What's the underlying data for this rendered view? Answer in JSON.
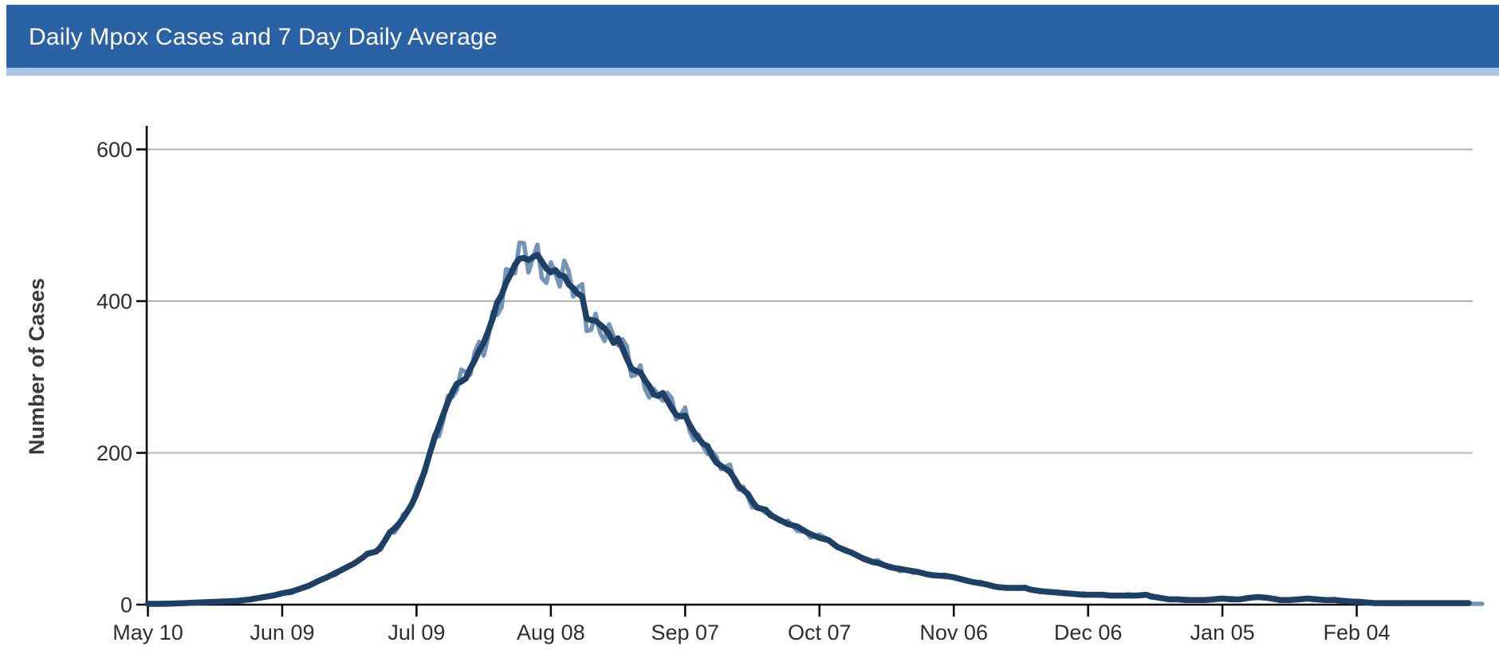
{
  "header": {
    "title": "Daily Mpox Cases and 7 Day Daily Average",
    "bg_color": "#2b62a6",
    "accent_strip_color": "#a6c6e6",
    "text_color": "#ffffff"
  },
  "chart_data": {
    "type": "line",
    "title": "Daily Mpox Cases and 7 Day Daily Average",
    "xlabel": "",
    "ylabel": "Number of Cases",
    "ylim": [
      0,
      630
    ],
    "yticks": [
      0,
      200,
      400,
      600
    ],
    "xtick_labels": [
      "May 10",
      "Jun 09",
      "Jul 09",
      "Aug 08",
      "Sep 07",
      "Oct 07",
      "Nov 06",
      "Dec 06",
      "Jan 05",
      "Feb 04"
    ],
    "xtick_days": [
      0,
      30,
      60,
      90,
      120,
      150,
      180,
      210,
      240,
      270
    ],
    "x_range_days": [
      0,
      295.5
    ],
    "grid": "horizontal",
    "legend": "none",
    "axis_color": "#000000",
    "grid_color": "#b5b5b5",
    "tick_label_color": "#2e2e2e",
    "series": [
      {
        "name": "Daily Cases",
        "color": "#7493b8",
        "style": "derived-jitter-of-average",
        "jitter_amp": 0.045,
        "extend_days": 3
      },
      {
        "name": "7 Day Daily Average",
        "color": "#1e3f66",
        "points": [
          [
            0,
            1
          ],
          [
            4,
            1
          ],
          [
            8,
            2
          ],
          [
            12,
            3
          ],
          [
            16,
            4
          ],
          [
            20,
            5
          ],
          [
            23,
            7
          ],
          [
            26,
            10
          ],
          [
            28,
            12
          ],
          [
            30,
            15
          ],
          [
            32,
            17
          ],
          [
            34,
            21
          ],
          [
            36,
            25
          ],
          [
            38,
            31
          ],
          [
            40,
            36
          ],
          [
            42,
            42
          ],
          [
            44,
            48
          ],
          [
            46,
            54
          ],
          [
            48,
            62
          ],
          [
            49,
            67
          ],
          [
            51,
            70
          ],
          [
            52,
            76
          ],
          [
            53,
            85
          ],
          [
            54,
            95
          ],
          [
            55,
            100
          ],
          [
            56,
            106
          ],
          [
            57,
            114
          ],
          [
            58,
            123
          ],
          [
            59,
            133
          ],
          [
            60,
            146
          ],
          [
            61,
            162
          ],
          [
            62,
            180
          ],
          [
            63,
            200
          ],
          [
            64,
            219
          ],
          [
            65,
            235
          ],
          [
            66,
            251
          ],
          [
            67,
            267
          ],
          [
            68,
            280
          ],
          [
            69,
            291
          ],
          [
            70,
            294
          ],
          [
            71,
            298
          ],
          [
            72,
            311
          ],
          [
            73,
            322
          ],
          [
            74,
            335
          ],
          [
            75,
            345
          ],
          [
            76,
            360
          ],
          [
            77,
            377
          ],
          [
            78,
            398
          ],
          [
            79,
            408
          ],
          [
            80,
            424
          ],
          [
            81,
            435
          ],
          [
            82,
            448
          ],
          [
            83,
            456
          ],
          [
            84,
            457
          ],
          [
            85,
            454
          ],
          [
            86,
            458
          ],
          [
            87,
            461
          ],
          [
            88,
            452
          ],
          [
            89,
            443
          ],
          [
            90,
            438
          ],
          [
            91,
            441
          ],
          [
            92,
            434
          ],
          [
            93,
            433
          ],
          [
            94,
            422
          ],
          [
            95,
            417
          ],
          [
            96,
            410
          ],
          [
            97,
            406
          ],
          [
            98,
            377
          ],
          [
            99,
            375
          ],
          [
            100,
            374
          ],
          [
            101,
            369
          ],
          [
            102,
            364
          ],
          [
            103,
            356
          ],
          [
            104,
            345
          ],
          [
            105,
            351
          ],
          [
            106,
            338
          ],
          [
            107,
            324
          ],
          [
            108,
            311
          ],
          [
            109,
            308
          ],
          [
            110,
            306
          ],
          [
            111,
            296
          ],
          [
            112,
            288
          ],
          [
            113,
            277
          ],
          [
            114,
            275
          ],
          [
            115,
            279
          ],
          [
            116,
            269
          ],
          [
            117,
            259
          ],
          [
            118,
            250
          ],
          [
            119,
            248
          ],
          [
            120,
            249
          ],
          [
            121,
            237
          ],
          [
            122,
            227
          ],
          [
            123,
            219
          ],
          [
            124,
            212
          ],
          [
            125,
            209
          ],
          [
            126,
            196
          ],
          [
            127,
            187
          ],
          [
            128,
            183
          ],
          [
            130,
            175
          ],
          [
            131,
            166
          ],
          [
            132,
            156
          ],
          [
            133,
            151
          ],
          [
            134,
            146
          ],
          [
            135,
            136
          ],
          [
            136,
            128
          ],
          [
            138,
            125
          ],
          [
            139,
            118
          ],
          [
            141,
            112
          ],
          [
            142,
            109
          ],
          [
            143,
            106
          ],
          [
            145,
            103
          ],
          [
            147,
            96
          ],
          [
            148,
            93
          ],
          [
            150,
            88
          ],
          [
            152,
            85
          ],
          [
            154,
            76
          ],
          [
            156,
            71
          ],
          [
            157,
            69
          ],
          [
            159,
            63
          ],
          [
            160,
            60
          ],
          [
            162,
            56
          ],
          [
            163,
            55
          ],
          [
            165,
            51
          ],
          [
            166,
            49
          ],
          [
            168,
            47
          ],
          [
            169,
            46
          ],
          [
            171,
            44
          ],
          [
            172,
            43
          ],
          [
            174,
            40
          ],
          [
            175,
            39
          ],
          [
            177,
            38
          ],
          [
            178,
            38
          ],
          [
            180,
            36
          ],
          [
            182,
            33
          ],
          [
            184,
            30
          ],
          [
            186,
            28
          ],
          [
            187,
            27
          ],
          [
            189,
            24
          ],
          [
            190,
            23
          ],
          [
            192,
            22
          ],
          [
            194,
            22
          ],
          [
            196,
            22
          ],
          [
            197,
            20
          ],
          [
            199,
            18
          ],
          [
            201,
            17
          ],
          [
            203,
            16
          ],
          [
            205,
            15
          ],
          [
            207,
            14
          ],
          [
            209,
            13
          ],
          [
            211,
            13
          ],
          [
            213,
            13
          ],
          [
            215,
            12
          ],
          [
            217,
            12
          ],
          [
            219,
            12
          ],
          [
            221,
            12
          ],
          [
            223,
            13
          ],
          [
            224,
            11
          ],
          [
            226,
            9
          ],
          [
            228,
            7
          ],
          [
            230,
            7
          ],
          [
            232,
            6
          ],
          [
            234,
            6
          ],
          [
            236,
            6
          ],
          [
            238,
            7
          ],
          [
            240,
            8
          ],
          [
            242,
            7
          ],
          [
            244,
            7
          ],
          [
            246,
            9
          ],
          [
            248,
            10
          ],
          [
            250,
            9
          ],
          [
            252,
            7
          ],
          [
            253,
            6
          ],
          [
            255,
            6
          ],
          [
            257,
            7
          ],
          [
            259,
            8
          ],
          [
            261,
            7
          ],
          [
            263,
            6
          ],
          [
            265,
            6
          ],
          [
            267,
            5
          ],
          [
            269,
            4
          ],
          [
            270,
            4
          ],
          [
            272,
            3
          ],
          [
            274,
            2
          ],
          [
            278,
            2
          ],
          [
            282,
            2
          ],
          [
            286,
            2
          ],
          [
            290,
            2
          ],
          [
            295,
            2
          ]
        ]
      }
    ]
  }
}
